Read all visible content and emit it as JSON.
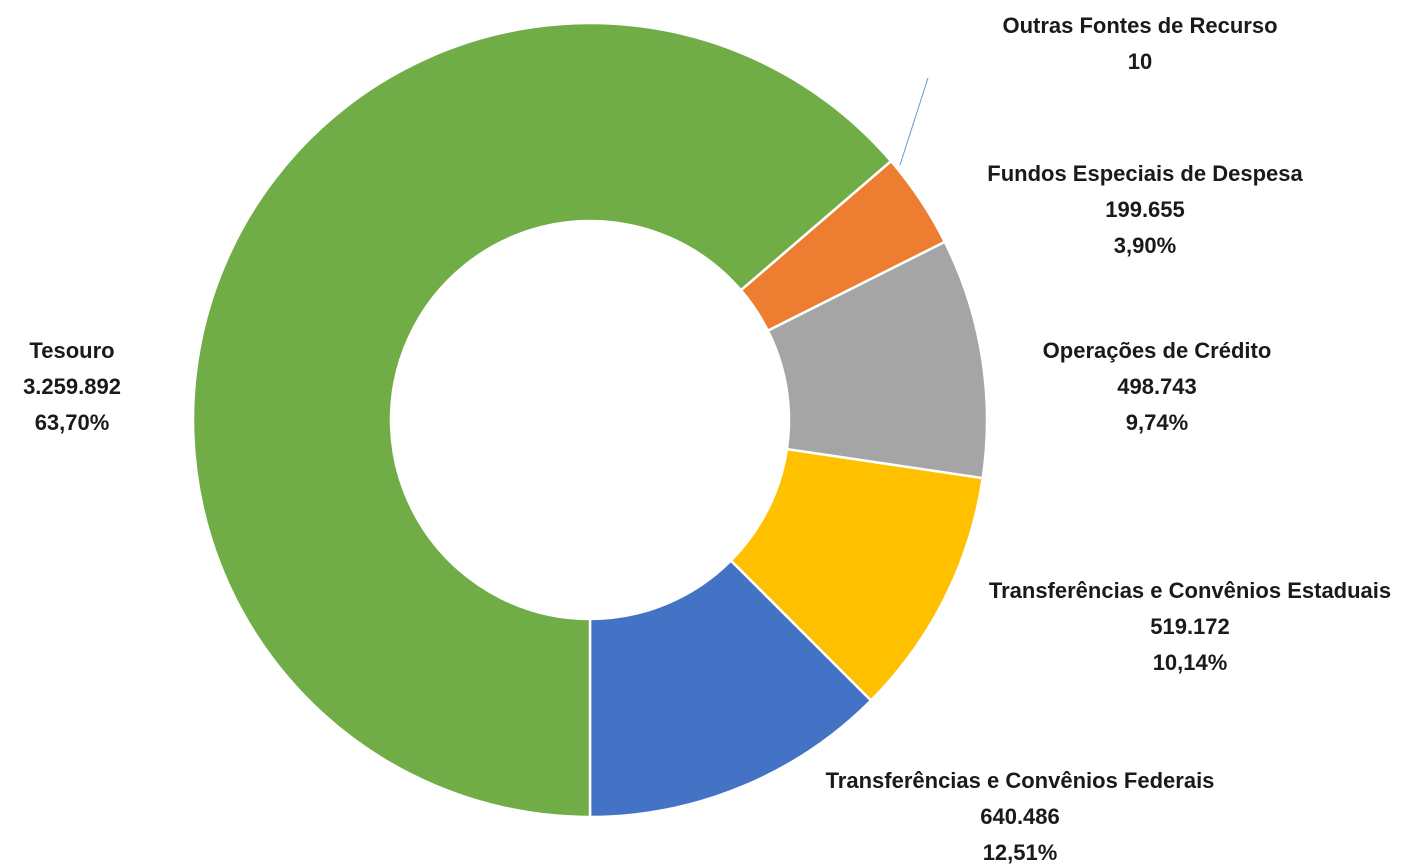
{
  "chart_data": {
    "type": "donut",
    "categories": [
      "Outras Fontes de Recurso",
      "Fundos Especiais de Despesa",
      "Operações de Crédito",
      "Transferências e Convênios Estaduais",
      "Transferências e Convênios Federais",
      "Tesouro"
    ],
    "values": [
      10,
      199655,
      498743,
      519172,
      640486,
      3259892
    ],
    "value_labels": [
      "10",
      "199.655",
      "498.743",
      "519.172",
      "640.486",
      "3.259.892"
    ],
    "percent_labels": [
      null,
      "3,90%",
      "9,74%",
      "10,14%",
      "12,51%",
      "63,70%"
    ],
    "colors": [
      "#5b9bd5",
      "#ed7d31",
      "#a5a5a5",
      "#ffc000",
      "#4472c4",
      "#70ad47"
    ]
  }
}
